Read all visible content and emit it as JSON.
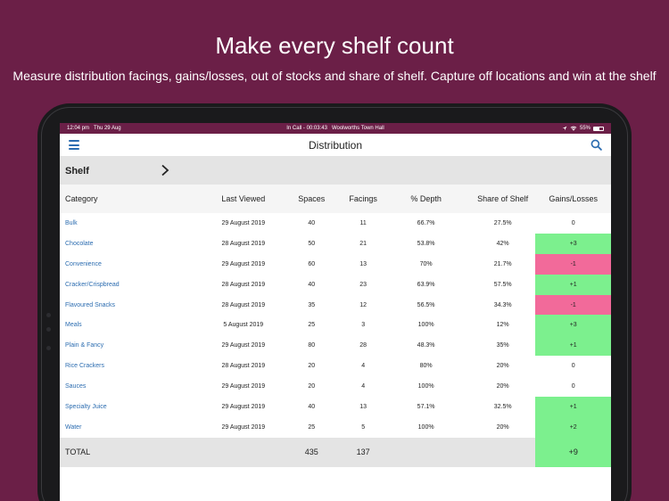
{
  "marketing": {
    "headline": "Make every shelf count",
    "subline": "Measure distribution facings, gains/losses, out of stocks and share of shelf. Capture off locations and win at the shelf"
  },
  "status_bar": {
    "time": "12:04 pm",
    "date": "Thu 29 Aug",
    "call": "In Call - 00:03:43",
    "location": "Woolworths Town Hall",
    "battery": "55%"
  },
  "nav": {
    "title": "Distribution",
    "menu_icon": "hamburger-icon",
    "search_icon": "search-icon"
  },
  "shelf": {
    "label": "Shelf",
    "icon": "chevron-right-icon"
  },
  "table": {
    "headers": {
      "category": "Category",
      "last_viewed": "Last Viewed",
      "spaces": "Spaces",
      "facings": "Facings",
      "depth": "% Depth",
      "share": "Share of Shelf",
      "gains": "Gains/Losses"
    },
    "rows": [
      {
        "category": "Bulk",
        "last_viewed": "29 August 2019",
        "spaces": "40",
        "facings": "11",
        "depth": "66.7%",
        "share": "27.5%",
        "gains": "0",
        "status": "neutral"
      },
      {
        "category": "Chocolate",
        "last_viewed": "28 August 2019",
        "spaces": "50",
        "facings": "21",
        "depth": "53.8%",
        "share": "42%",
        "gains": "+3",
        "status": "positive"
      },
      {
        "category": "Convenience",
        "last_viewed": "29 August 2019",
        "spaces": "60",
        "facings": "13",
        "depth": "70%",
        "share": "21.7%",
        "gains": "-1",
        "status": "negative"
      },
      {
        "category": "Cracker/Crispbread",
        "last_viewed": "28 August 2019",
        "spaces": "40",
        "facings": "23",
        "depth": "63.9%",
        "share": "57.5%",
        "gains": "+1",
        "status": "positive"
      },
      {
        "category": "Flavoured Snacks",
        "last_viewed": "28 August 2019",
        "spaces": "35",
        "facings": "12",
        "depth": "56.5%",
        "share": "34.3%",
        "gains": "-1",
        "status": "negative"
      },
      {
        "category": "Meals",
        "last_viewed": "5 August 2019",
        "spaces": "25",
        "facings": "3",
        "depth": "100%",
        "share": "12%",
        "gains": "+3",
        "status": "positive"
      },
      {
        "category": "Plain & Fancy",
        "last_viewed": "29 August 2019",
        "spaces": "80",
        "facings": "28",
        "depth": "48.3%",
        "share": "35%",
        "gains": "+1",
        "status": "positive"
      },
      {
        "category": "Rice Crackers",
        "last_viewed": "28 August 2019",
        "spaces": "20",
        "facings": "4",
        "depth": "80%",
        "share": "20%",
        "gains": "0",
        "status": "neutral"
      },
      {
        "category": "Sauces",
        "last_viewed": "29 August 2019",
        "spaces": "20",
        "facings": "4",
        "depth": "100%",
        "share": "20%",
        "gains": "0",
        "status": "neutral"
      },
      {
        "category": "Specialty Juice",
        "last_viewed": "29 August 2019",
        "spaces": "40",
        "facings": "13",
        "depth": "57.1%",
        "share": "32.5%",
        "gains": "+1",
        "status": "positive"
      },
      {
        "category": "Water",
        "last_viewed": "29 August 2019",
        "spaces": "25",
        "facings": "5",
        "depth": "100%",
        "share": "20%",
        "gains": "+2",
        "status": "positive"
      }
    ],
    "total": {
      "label": "TOTAL",
      "spaces": "435",
      "facings": "137",
      "gains": "+9"
    }
  },
  "colors": {
    "background": "#6b1f47",
    "positive": "#7cf08e",
    "negative": "#f26a9a",
    "link": "#2b6cb0"
  }
}
